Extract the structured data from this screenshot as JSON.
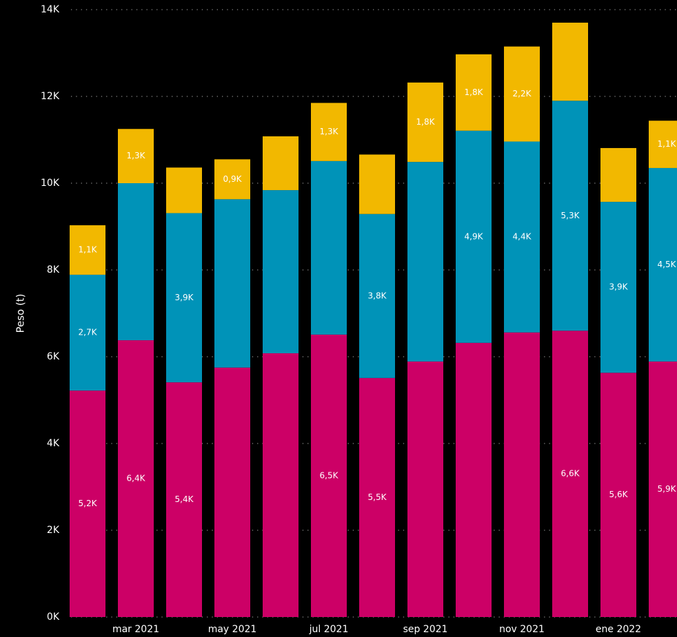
{
  "chart_data": {
    "type": "stacked_bar",
    "y_label": "Peso (t)",
    "categories": [
      null,
      "mar 2021",
      null,
      "may 2021",
      null,
      "jul 2021",
      null,
      "sep 2021",
      null,
      "nov 2021",
      null,
      "ene 2022",
      null
    ],
    "series": [
      {
        "color": "#cc0066",
        "values": [
          5220,
          6380,
          5410,
          5750,
          6080,
          6510,
          5510,
          5890,
          6320,
          6560,
          6600,
          5630,
          5890
        ],
        "value_labels": [
          "5,2K",
          "6,4K",
          "5,4K",
          null,
          null,
          "6,5K",
          "5,5K",
          null,
          null,
          null,
          "6,6K",
          "5,6K",
          "5,9K"
        ]
      },
      {
        "color": "#0093b8",
        "values": [
          2670,
          3620,
          3900,
          3880,
          3760,
          4000,
          3780,
          4600,
          4890,
          4400,
          5300,
          3940,
          4460
        ],
        "value_labels": [
          "2,7K",
          null,
          "3,9K",
          null,
          null,
          null,
          "3,8K",
          null,
          "4,9K",
          "4,4K",
          "5,3K",
          "3,9K",
          "4,5K"
        ]
      },
      {
        "color": "#f2b800",
        "values": [
          1140,
          1250,
          1050,
          920,
          1240,
          1340,
          1370,
          1830,
          1760,
          2190,
          1800,
          1240,
          1090
        ],
        "value_labels": [
          "1,1K",
          "1,3K",
          null,
          "0,9K",
          null,
          "1,3K",
          null,
          "1,8K",
          "1,8K",
          "2,2K",
          null,
          null,
          "1,1K"
        ]
      }
    ],
    "ylim": [
      0,
      14000
    ],
    "yticks": [
      {
        "value": 0,
        "label": "0K"
      },
      {
        "value": 2000,
        "label": "2K"
      },
      {
        "value": 4000,
        "label": "4K"
      },
      {
        "value": 6000,
        "label": "6K"
      },
      {
        "value": 8000,
        "label": "8K"
      },
      {
        "value": 10000,
        "label": "10K"
      },
      {
        "value": 12000,
        "label": "12K"
      },
      {
        "value": 14000,
        "label": "14K"
      }
    ],
    "grid": true
  }
}
